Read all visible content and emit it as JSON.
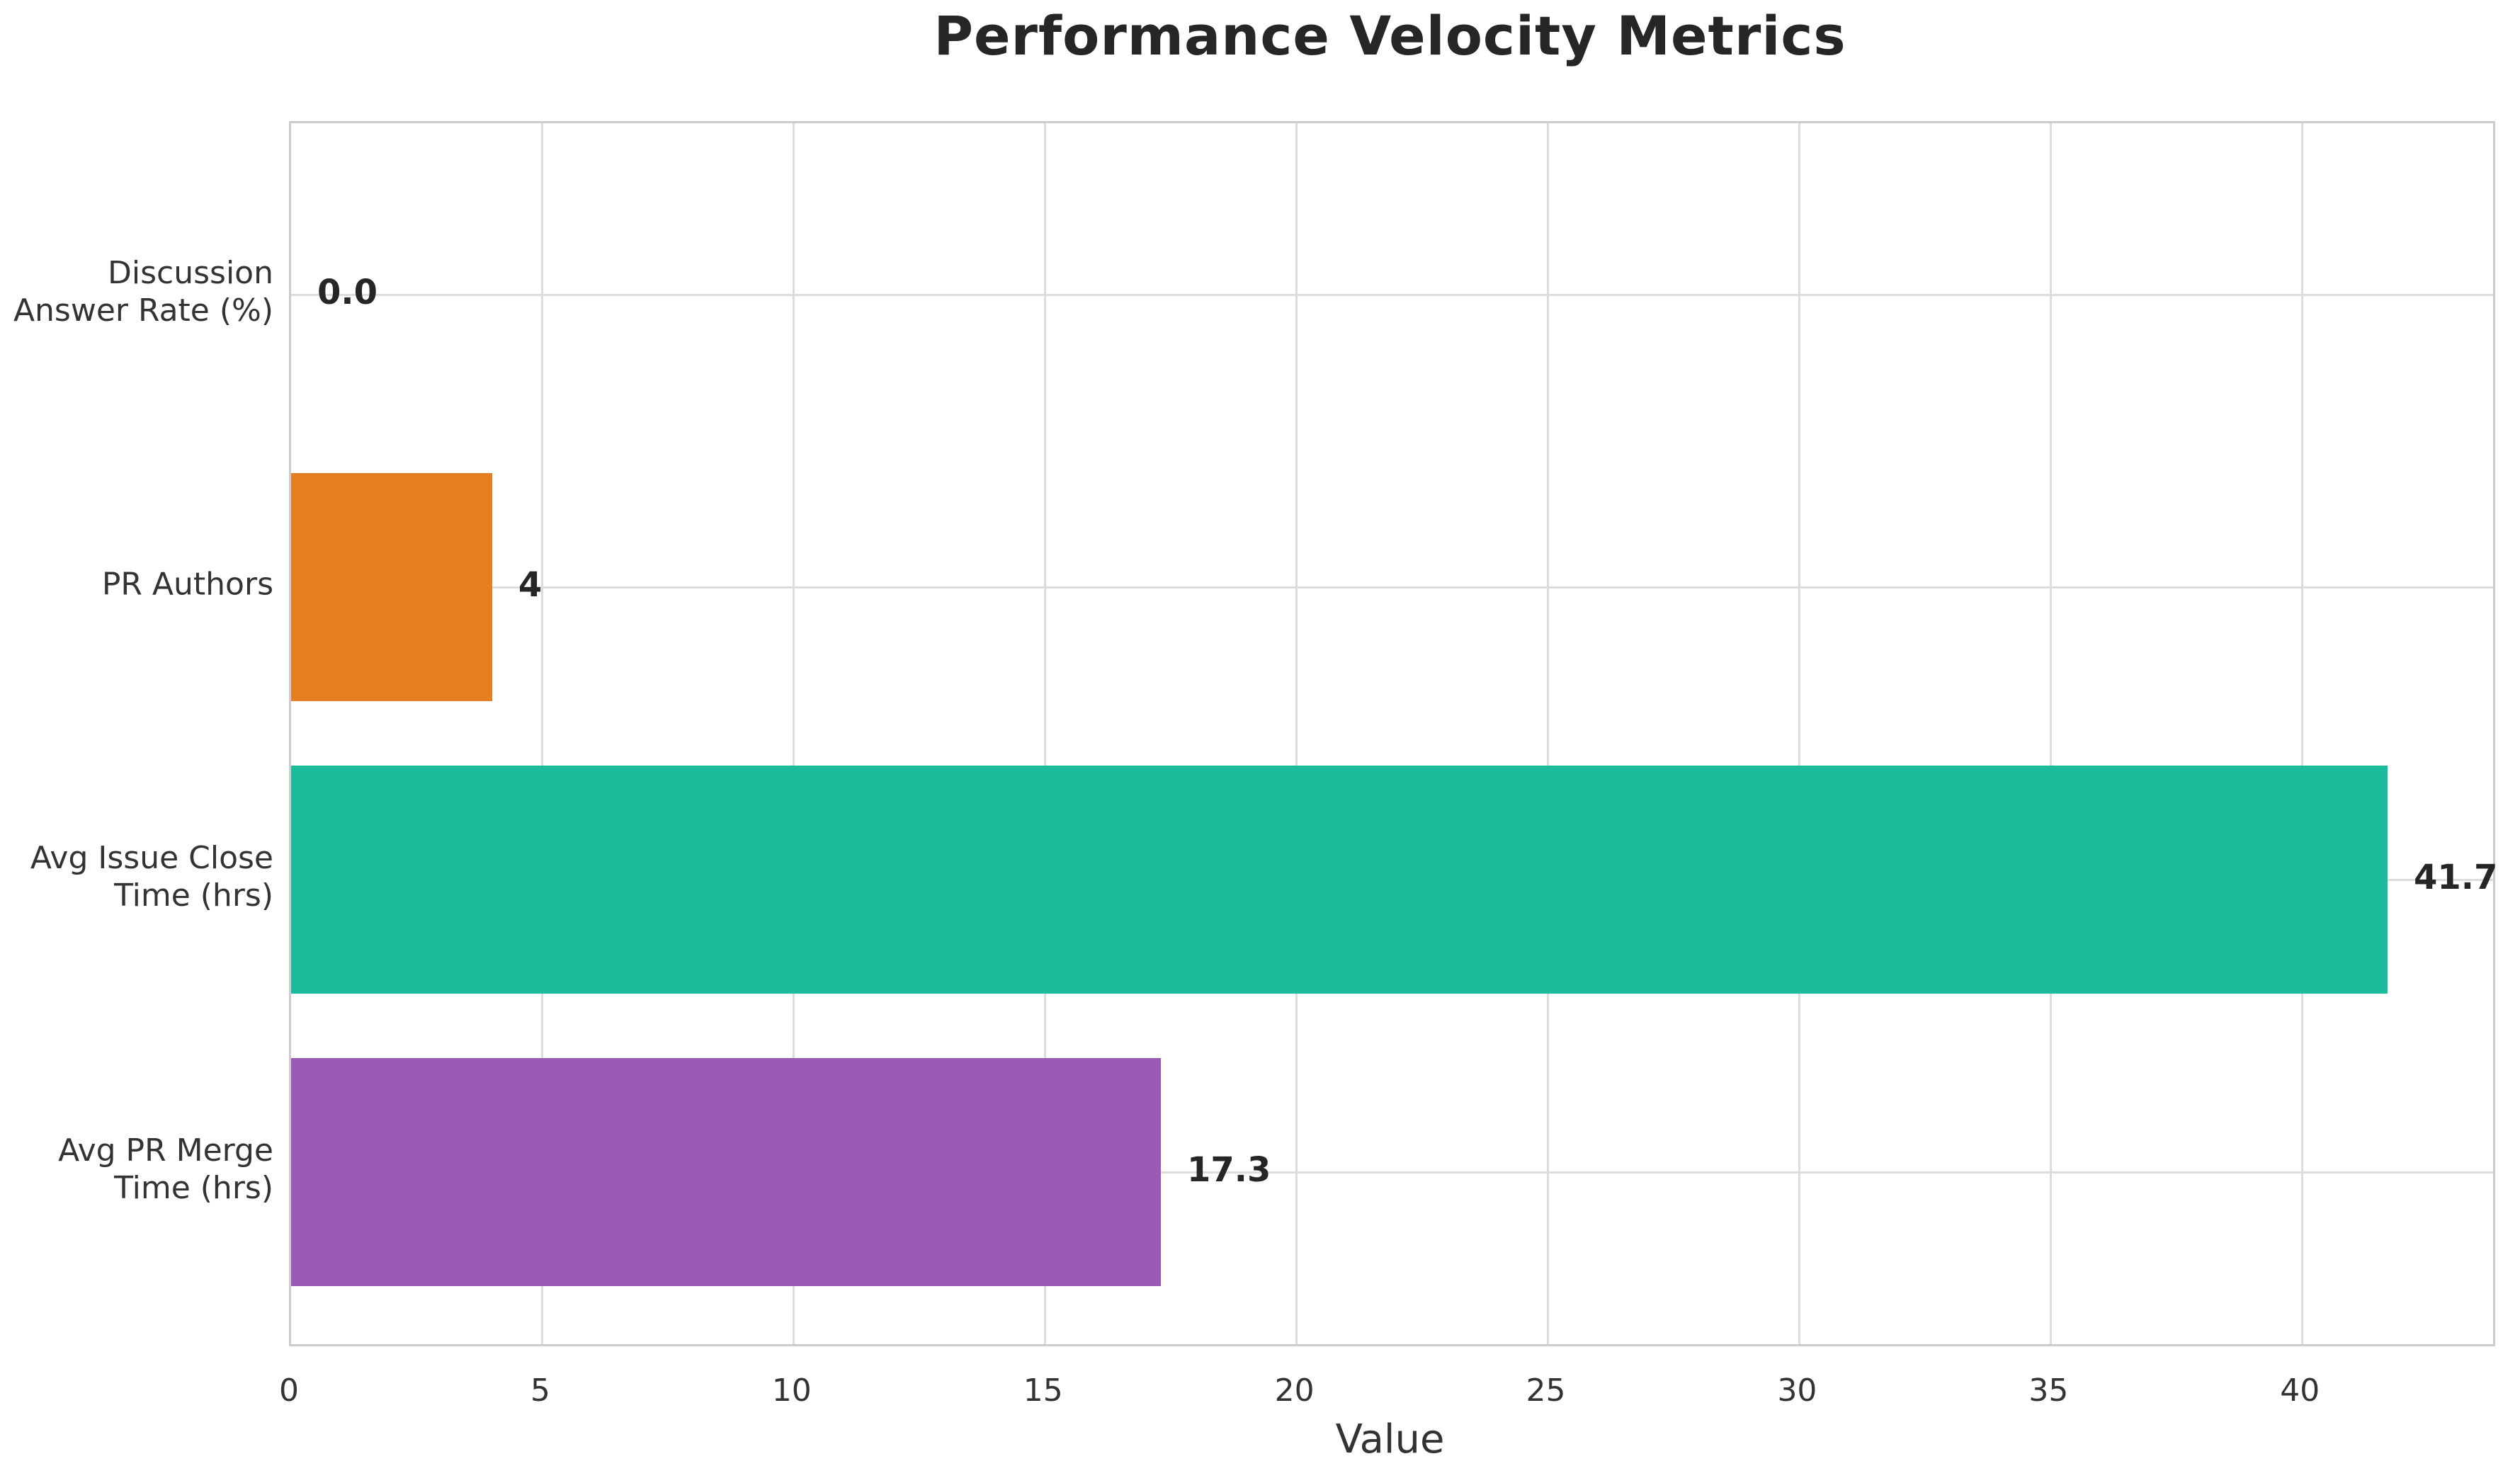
{
  "chart_data": {
    "type": "bar",
    "orientation": "horizontal",
    "title": "Performance Velocity Metrics",
    "xlabel": "Value",
    "ylabel": "",
    "categories": [
      "Discussion\nAnswer Rate (%)",
      "PR Authors",
      "Avg Issue Close\nTime (hrs)",
      "Avg PR Merge\nTime (hrs)"
    ],
    "values": [
      0.0,
      4,
      41.7,
      17.3
    ],
    "value_labels": [
      "0.0",
      "4",
      "41.7",
      "17.3"
    ],
    "bar_colors": [
      "#3498db",
      "#e67e22",
      "#1abc9c",
      "#9b59b6"
    ],
    "xlim": [
      0,
      43.8
    ],
    "xticks": [
      0,
      5,
      10,
      15,
      20,
      25,
      30,
      35,
      40
    ],
    "grid": true,
    "legend_position": "none"
  },
  "style": {
    "background": "#ffffff",
    "grid_color": "#dcdcdc",
    "spine_color": "#cccccc",
    "title_color": "#262626",
    "text_color": "#333333",
    "value_label_color": "#262626"
  }
}
